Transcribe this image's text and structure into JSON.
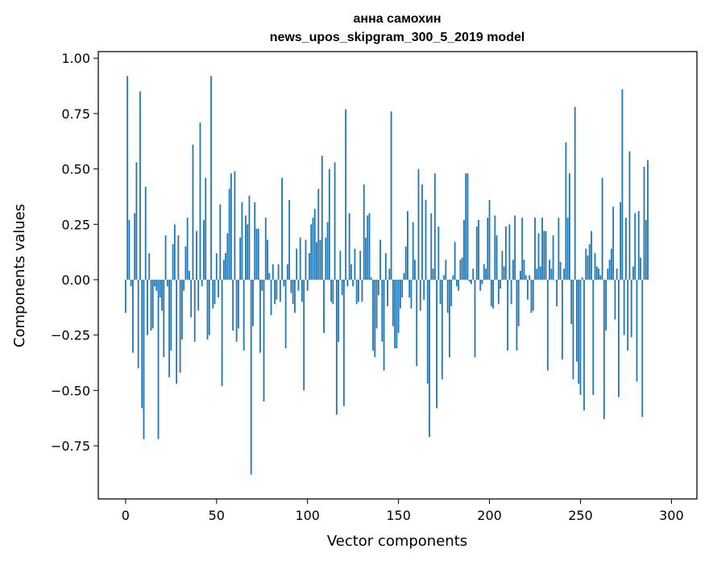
{
  "chart_data": {
    "type": "bar",
    "title": "анна самохин",
    "subtitle": "news_upos_skipgram_300_5_2019 model",
    "xlabel": "Vector components",
    "ylabel": "Components values",
    "xlim": [
      -15,
      314
    ],
    "ylim": [
      -0.99,
      1.03
    ],
    "xticks": [
      0,
      50,
      100,
      150,
      200,
      250,
      300
    ],
    "xtick_labels": [
      "0",
      "50",
      "100",
      "150",
      "200",
      "250",
      "300"
    ],
    "yticks": [
      -0.75,
      -0.5,
      -0.25,
      0.0,
      0.25,
      0.5,
      0.75,
      1.0
    ],
    "ytick_labels": [
      "−0.75",
      "−0.50",
      "−0.25",
      "0.00",
      "0.25",
      "0.50",
      "0.75",
      "1.00"
    ],
    "grid": false,
    "bar_color": "#1f77b4",
    "values": [
      -0.15,
      0.92,
      0.27,
      -0.03,
      -0.33,
      0.3,
      0.53,
      -0.4,
      0.85,
      -0.58,
      -0.72,
      0.42,
      -0.25,
      0.12,
      -0.23,
      -0.22,
      -0.03,
      -0.05,
      -0.72,
      -0.08,
      -0.14,
      -0.35,
      0.2,
      -0.03,
      -0.44,
      -0.32,
      0.16,
      0.25,
      -0.47,
      0.2,
      -0.42,
      -0.27,
      -0.05,
      0.15,
      0.28,
      0.04,
      -0.17,
      0.61,
      -0.28,
      0.22,
      -0.14,
      0.71,
      -0.03,
      0.27,
      0.46,
      -0.27,
      -0.25,
      0.92,
      -0.13,
      -0.11,
      0.12,
      -0.08,
      0.34,
      -0.48,
      0.09,
      0.12,
      0.21,
      0.41,
      0.48,
      -0.23,
      0.49,
      -0.28,
      -0.22,
      0.19,
      0.35,
      -0.32,
      0.29,
      0.25,
      0.38,
      -0.88,
      -0.21,
      0.35,
      0.23,
      0.23,
      -0.33,
      -0.05,
      -0.55,
      0.28,
      0.18,
      0.03,
      -0.16,
      0.07,
      -0.11,
      -0.09,
      0.07,
      -0.1,
      0.46,
      -0.03,
      -0.31,
      0.07,
      0.36,
      -0.06,
      -0.11,
      -0.15,
      0.14,
      -0.05,
      0.19,
      -0.1,
      -0.5,
      0.18,
      -0.05,
      0.12,
      0.25,
      0.28,
      0.32,
      0.17,
      0.41,
      0.18,
      0.56,
      -0.24,
      0.19,
      0.26,
      0.5,
      -0.1,
      -0.11,
      0.53,
      -0.61,
      -0.28,
      0.13,
      -0.07,
      -0.57,
      0.77,
      -0.03,
      0.3,
      0.07,
      -0.03,
      0.14,
      -0.11,
      -0.1,
      0.13,
      -0.1,
      0.43,
      0.19,
      0.29,
      0.3,
      0.01,
      -0.32,
      -0.35,
      -0.22,
      -0.07,
      0.18,
      -0.28,
      -0.41,
      0.12,
      -0.12,
      0.05,
      0.76,
      -0.21,
      -0.31,
      -0.31,
      -0.24,
      -0.13,
      -0.08,
      0.03,
      0.15,
      0.31,
      -0.08,
      -0.13,
      0.26,
      0.09,
      -0.39,
      0.5,
      -0.14,
      0.43,
      -0.09,
      0.36,
      -0.47,
      -0.71,
      0.3,
      0.05,
      0.48,
      -0.58,
      0.24,
      -0.11,
      -0.45,
      0.02,
      0.09,
      -0.15,
      -0.35,
      -0.12,
      0.02,
      0.17,
      -0.03,
      -0.05,
      0.09,
      0.1,
      0.27,
      0.48,
      0.48,
      -0.01,
      -0.02,
      0.05,
      -0.35,
      0.24,
      0.27,
      -0.05,
      -0.02,
      0.07,
      0.05,
      0.28,
      0.36,
      -0.12,
      -0.13,
      0.29,
      0.2,
      -0.11,
      -0.04,
      0.13,
      0.06,
      0.24,
      -0.32,
      0.25,
      -0.11,
      0.09,
      0.29,
      -0.32,
      -0.21,
      0.04,
      0.28,
      0.09,
      0.02,
      -0.09,
      0.02,
      -0.15,
      -0.14,
      0.28,
      0.05,
      0.21,
      0.06,
      0.28,
      0.22,
      0.22,
      -0.41,
      0.09,
      0.05,
      0.2,
      0.0,
      -0.12,
      0.28,
      0.08,
      -0.36,
      0.05,
      0.62,
      0.28,
      0.48,
      -0.2,
      -0.45,
      0.78,
      -0.37,
      -0.47,
      -0.52,
      0.01,
      -0.59,
      0.14,
      0.11,
      0.16,
      0.22,
      -0.52,
      0.12,
      0.06,
      0.05,
      0.02,
      0.46,
      -0.63,
      -0.23,
      0.05,
      0.09,
      0.14,
      0.33,
      -0.18,
      0.05,
      -0.53,
      0.35,
      0.86,
      -0.25,
      0.28,
      -0.32,
      0.58,
      -0.26,
      0.06,
      0.3,
      -0.46,
      0.31,
      0.1,
      -0.62,
      0.51,
      0.27,
      0.54
    ]
  }
}
